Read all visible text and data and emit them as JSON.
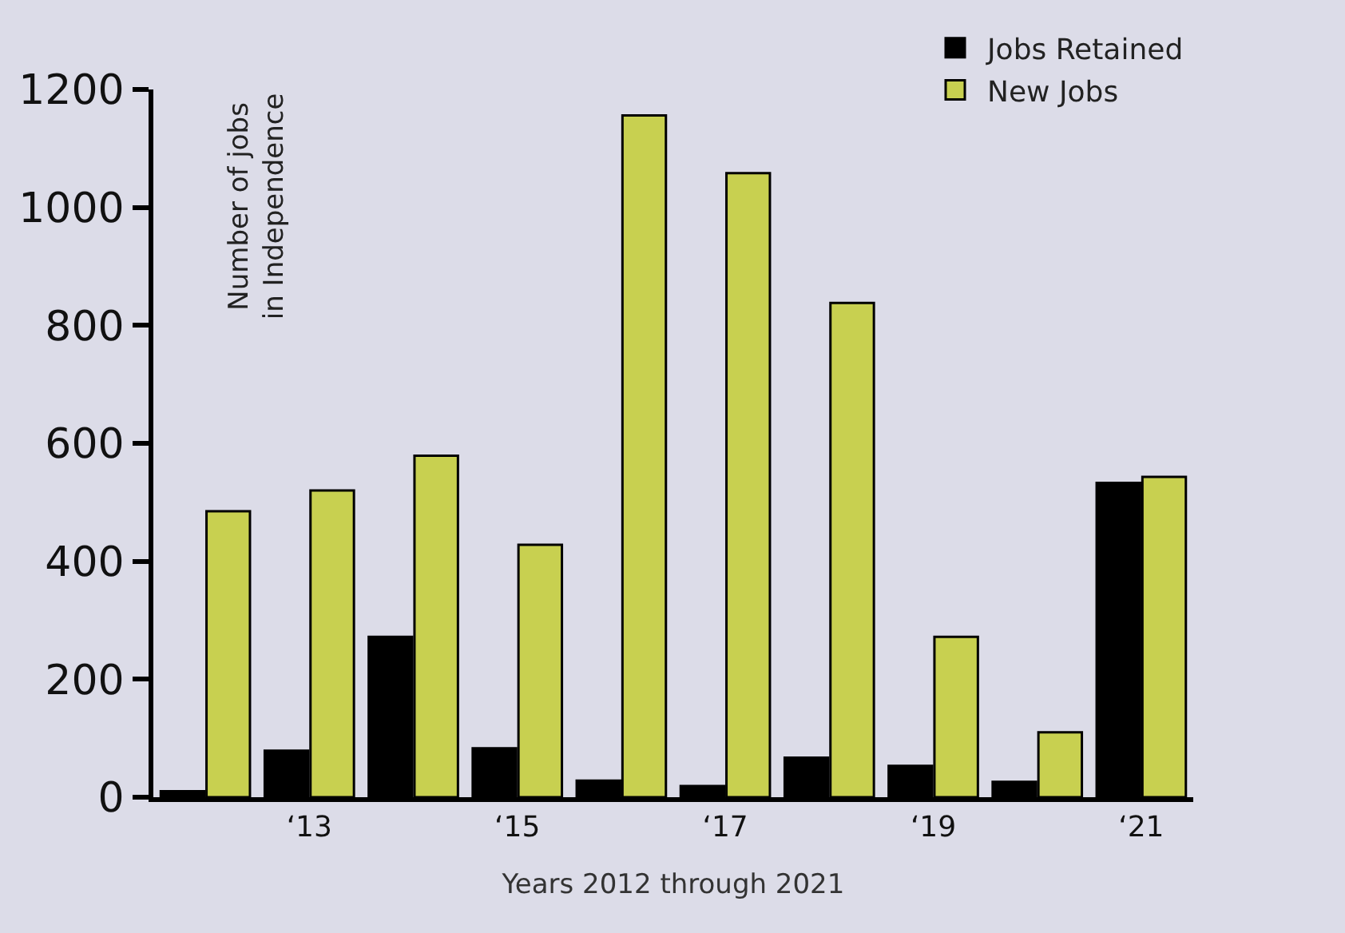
{
  "chart_data": {
    "type": "bar",
    "xlabel": "Years 2012 through 2021",
    "ylabel": "Number of jobs\nin Independence",
    "categories": [
      null,
      "‘13",
      null,
      "‘15",
      null,
      "‘17",
      null,
      "‘19",
      null,
      "‘21"
    ],
    "series": [
      {
        "name": "Jobs Retained",
        "color": "#000000",
        "values": [
          10,
          79,
          272,
          83,
          28,
          19,
          67,
          53,
          26,
          533
        ]
      },
      {
        "name": "New Jobs",
        "color": "#c8d050",
        "values": [
          485,
          520,
          579,
          428,
          1156,
          1058,
          838,
          272,
          110,
          543
        ]
      }
    ],
    "ylim": [
      0,
      1200
    ],
    "yticks": [
      0,
      200,
      400,
      600,
      800,
      1000,
      1200
    ],
    "grid": false,
    "legend": "top right"
  }
}
